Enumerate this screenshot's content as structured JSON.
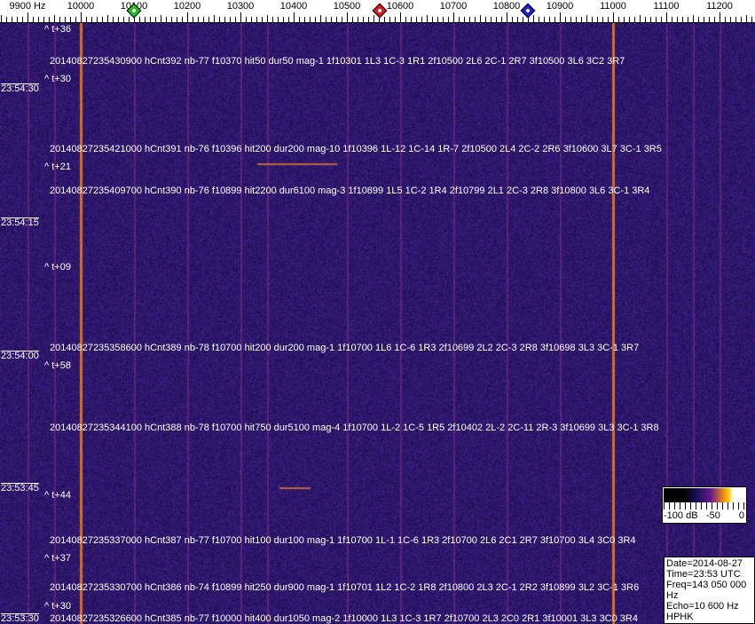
{
  "freq_axis": {
    "labels": [
      "9900 Hz",
      "10000",
      "10100",
      "10200",
      "10300",
      "10400",
      "10500",
      "10600",
      "10700",
      "10800",
      "10900",
      "11000",
      "11100",
      "11200"
    ],
    "values": [
      9900,
      10000,
      10100,
      10200,
      10300,
      10400,
      10500,
      10600,
      10700,
      10800,
      10900,
      11000,
      11100,
      11200
    ],
    "markers": [
      {
        "name": "green-marker",
        "freq": 10100,
        "color": "#20c020"
      },
      {
        "name": "red-marker",
        "freq": 10562,
        "color": "#d02020"
      },
      {
        "name": "blue-marker",
        "freq": 10840,
        "color": "#2020d0"
      }
    ]
  },
  "waterfall": {
    "colors": {
      "background": "#1e1460",
      "line": "#e07a30",
      "faint": "#8a2a8a"
    },
    "strong_lines_hz": [
      10000,
      11000
    ],
    "faint_lines_hz": [
      9900,
      9950,
      10100,
      10200,
      10300,
      10350,
      10500,
      10600,
      10700,
      10800,
      10900,
      11100,
      11150,
      11200
    ]
  },
  "time_labels": [
    "23:54:30",
    "23:54:15",
    "23:54:00",
    "23:53:45",
    "23:53:30"
  ],
  "offset_marks": [
    "^ t+36",
    "^ t+30",
    "^ t+21",
    "^ t+09",
    "^ t+58",
    "^ t+44",
    "^ t+37",
    "^ t+30"
  ],
  "events": [
    "20140827235430900 hCnt392 nb-77 f10370 hit50 dur50 mag-1 1f10301 1L3 1C-3 1R1 2f10500 2L6 2C-1 2R7 3f10500 3L6 3C2 3R7",
    "20140827235421000 hCnt391 nb-76 f10396 hit200 dur200 mag-10 1f10396 1L-12 1C-14 1R-7 2f10500 2L4 2C-2 2R6 3f10600 3L7 3C-1 3R5",
    "20140827235409700 hCnt390 nb-76 f10899 hit2200 dur6100 mag-3 1f10899 1L5 1C-2 1R4 2f10799 2L1 2C-3 2R8 3f10800 3L6 3C-1 3R4",
    "20140827235358600 hCnt389 nb-78 f10700 hit200 dur200 mag-1 1f10700 1L6 1C-6 1R3 2f10699 2L2 2C-3 2R8 3f10698 3L3 3C-1 3R7",
    "20140827235344100 hCnt388 nb-78 f10700 hit750 dur5100 mag-4 1f10700 1L-2 1C-5 1R5 2f10402 2L-2 2C-11 2R-3 3f10699 3L3 3C-1 3R8",
    "20140827235337000 hCnt387 nb-77 f10700 hit100 dur100 mag-1 1f10700 1L-1 1C-6 1R3 2f10700 2L6 2C1 2R7 3f10700 3L4 3C0 3R4",
    "20140827235330700 hCnt386 nb-74 f10899 hit250 dur900 mag-1 1f10701 1L2 1C-2 1R8 2f10800 2L3 2C-1 2R2 3f10899 3L2 3C-1 3R6",
    "20140827235326600 hCnt385 nb-77 f10000 hit400 dur1050 mag-2 1f10000 1L3 1C-3 1R7 2f10700 2L3 2C0 2R1 3f10001 3L3 3C0 3R4"
  ],
  "legend": {
    "labels": [
      "-100 dB",
      "-50",
      "0"
    ]
  },
  "info": {
    "date_time": "Date=2014-08-27 Time=23:53 UTC",
    "freq": "Freq=143 050 000 Hz",
    "echo": "Echo=10 600 Hz",
    "station": "HPHK"
  }
}
